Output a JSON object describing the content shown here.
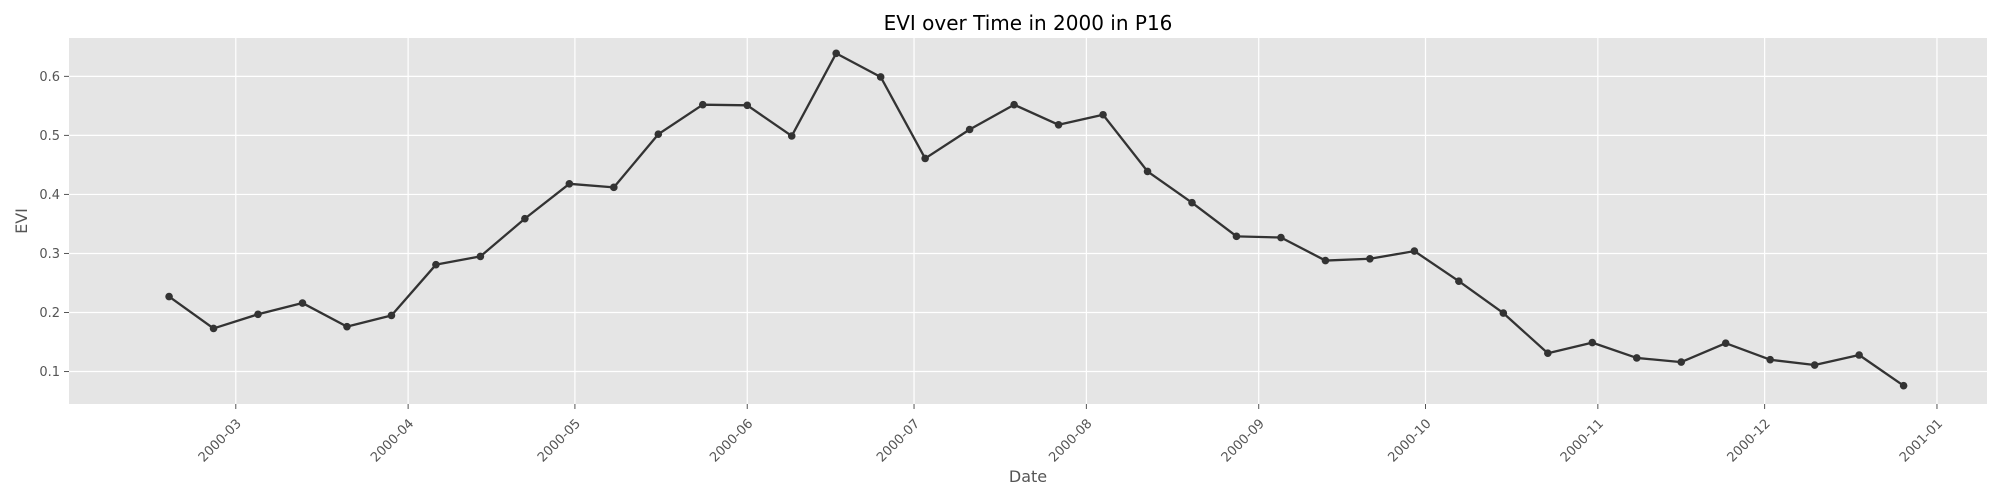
{
  "chart_data": {
    "type": "line",
    "title": "EVI over Time in 2000 in P16",
    "xlabel": "Date",
    "ylabel": "EVI",
    "x_ticks": [
      "2000-03",
      "2000-04",
      "2000-05",
      "2000-06",
      "2000-07",
      "2000-08",
      "2000-09",
      "2000-10",
      "2000-11",
      "2000-12",
      "2001-01"
    ],
    "y_ticks": [
      "0.1",
      "0.2",
      "0.3",
      "0.4",
      "0.5",
      "0.6"
    ],
    "xlim": [
      "2000-01-31",
      "2001-01-10"
    ],
    "ylim": [
      0.045,
      0.665
    ],
    "grid": true,
    "series": [
      {
        "color": "#333333",
        "x": [
          "2000-02-18",
          "2000-02-26",
          "2000-03-05",
          "2000-03-13",
          "2000-03-21",
          "2000-03-29",
          "2000-04-06",
          "2000-04-14",
          "2000-04-22",
          "2000-04-30",
          "2000-05-08",
          "2000-05-16",
          "2000-05-24",
          "2000-06-01",
          "2000-06-09",
          "2000-06-17",
          "2000-06-25",
          "2000-07-03",
          "2000-07-11",
          "2000-07-19",
          "2000-07-27",
          "2000-08-04",
          "2000-08-12",
          "2000-08-20",
          "2000-08-28",
          "2000-09-05",
          "2000-09-13",
          "2000-09-21",
          "2000-09-29",
          "2000-10-07",
          "2000-10-15",
          "2000-10-23",
          "2000-10-31",
          "2000-11-08",
          "2000-11-16",
          "2000-11-24",
          "2000-12-02",
          "2000-12-10",
          "2000-12-18",
          "2000-12-26"
        ],
        "values": [
          0.227,
          0.173,
          0.197,
          0.216,
          0.176,
          0.195,
          0.281,
          0.295,
          0.359,
          0.418,
          0.412,
          0.502,
          0.552,
          0.551,
          0.499,
          0.639,
          0.599,
          0.461,
          0.51,
          0.552,
          0.518,
          0.535,
          0.439,
          0.386,
          0.329,
          0.327,
          0.288,
          0.291,
          0.304,
          0.253,
          0.199,
          0.131,
          0.149,
          0.123,
          0.116,
          0.148,
          0.12,
          0.111,
          0.128,
          0.076
        ]
      }
    ]
  }
}
